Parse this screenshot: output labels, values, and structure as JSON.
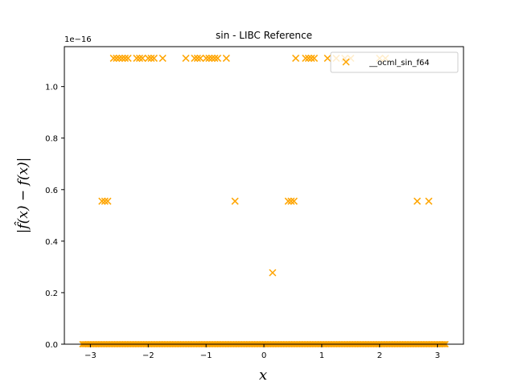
{
  "chart_data": {
    "type": "scatter",
    "title": "sin - LIBC Reference",
    "xlabel": "x",
    "ylabel": "|f̂(x) − f(x)|",
    "y_offset_label": "1e−16",
    "xlim": [
      -3.45,
      3.45
    ],
    "ylim": [
      0,
      1.155
    ],
    "x_ticks": [
      -3,
      -2,
      -1,
      0,
      1,
      2,
      3
    ],
    "y_ticks": [
      0.0,
      0.2,
      0.4,
      0.6,
      0.8,
      1.0
    ],
    "x_tick_labels": [
      "−3",
      "−2",
      "−1",
      "0",
      "1",
      "2",
      "3"
    ],
    "y_tick_labels": [
      "0.0",
      "0.2",
      "0.4",
      "0.6",
      "0.8",
      "1.0"
    ],
    "grid": false,
    "legend_position": "top-right",
    "series": [
      {
        "name": "__ocml_sin_f64",
        "marker": "x",
        "color": "#ffa500",
        "points": [
          [
            -2.6,
            1.11
          ],
          [
            -2.55,
            1.11
          ],
          [
            -2.5,
            1.11
          ],
          [
            -2.45,
            1.11
          ],
          [
            -2.4,
            1.11
          ],
          [
            -2.35,
            1.11
          ],
          [
            -2.2,
            1.11
          ],
          [
            -2.15,
            1.11
          ],
          [
            -2.1,
            1.11
          ],
          [
            -2.0,
            1.11
          ],
          [
            -1.95,
            1.11
          ],
          [
            -1.9,
            1.11
          ],
          [
            -1.75,
            1.11
          ],
          [
            -1.35,
            1.11
          ],
          [
            -1.2,
            1.11
          ],
          [
            -1.15,
            1.11
          ],
          [
            -1.1,
            1.11
          ],
          [
            -1.0,
            1.11
          ],
          [
            -0.95,
            1.11
          ],
          [
            -0.9,
            1.11
          ],
          [
            -0.85,
            1.11
          ],
          [
            -0.8,
            1.11
          ],
          [
            -0.65,
            1.11
          ],
          [
            0.55,
            1.11
          ],
          [
            0.72,
            1.11
          ],
          [
            0.77,
            1.11
          ],
          [
            0.82,
            1.11
          ],
          [
            0.87,
            1.11
          ],
          [
            1.1,
            1.11
          ],
          [
            1.25,
            1.11
          ],
          [
            1.4,
            1.11
          ],
          [
            1.5,
            1.11
          ],
          [
            2.0,
            1.11
          ],
          [
            2.1,
            1.11
          ],
          [
            -2.8,
            0.555
          ],
          [
            -2.75,
            0.555
          ],
          [
            -2.7,
            0.555
          ],
          [
            -0.5,
            0.555
          ],
          [
            0.42,
            0.555
          ],
          [
            0.47,
            0.555
          ],
          [
            0.52,
            0.555
          ],
          [
            2.65,
            0.555
          ],
          [
            2.85,
            0.555
          ],
          [
            0.15,
            0.2775
          ]
        ],
        "zero_band": {
          "x_from": -3.14,
          "x_to": 3.14,
          "y": 0
        }
      }
    ]
  }
}
